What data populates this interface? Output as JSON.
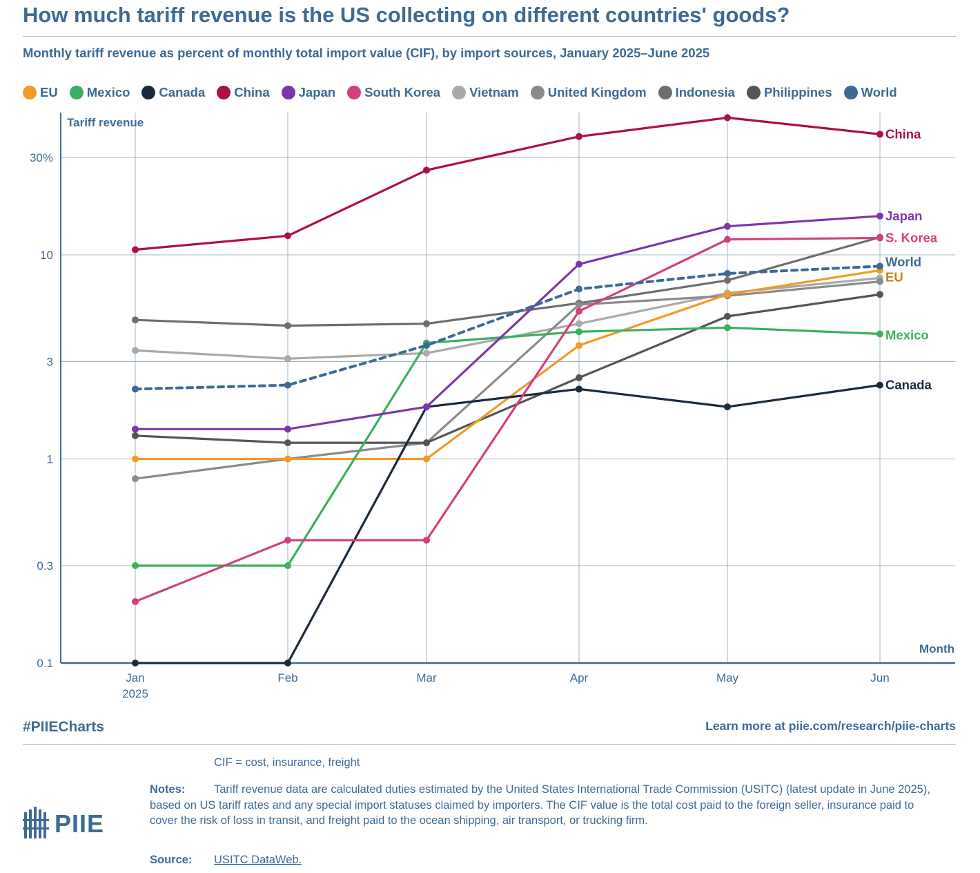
{
  "header": {
    "title": "How much tariff revenue is the US collecting on different countries' goods?",
    "subtitle": "Monthly tariff revenue as percent of monthly total import value (CIF), by import sources, January 2025–June 2025"
  },
  "legend": [
    {
      "label": "EU",
      "color": "#f39a27"
    },
    {
      "label": "Mexico",
      "color": "#3bb05e"
    },
    {
      "label": "Canada",
      "color": "#1a2a3d"
    },
    {
      "label": "China",
      "color": "#ac0f4b"
    },
    {
      "label": "Japan",
      "color": "#7b36ad"
    },
    {
      "label": "South Korea",
      "color": "#d1407e"
    },
    {
      "label": "Vietnam",
      "color": "#a9a9a9"
    },
    {
      "label": "United Kingdom",
      "color": "#8a8a8a"
    },
    {
      "label": "Indonesia",
      "color": "#6e6e6e"
    },
    {
      "label": "Philippines",
      "color": "#555555"
    },
    {
      "label": "World",
      "color": "#3d6a94"
    }
  ],
  "chart_data": {
    "type": "line",
    "title": "How much tariff revenue is the US collecting on different countries' goods?",
    "ylabel": "Tariff revenue",
    "xlabel": "Month",
    "y_scale": "log",
    "ylim": [
      0.1,
      45
    ],
    "y_ticks": [
      {
        "value": 0.1,
        "label": "0.1"
      },
      {
        "value": 0.3,
        "label": "0.3"
      },
      {
        "value": 1,
        "label": "1"
      },
      {
        "value": 3,
        "label": "3"
      },
      {
        "value": 10,
        "label": "10"
      },
      {
        "value": 30,
        "label": "30%"
      }
    ],
    "categories": [
      {
        "label": "Jan",
        "sub": "2025"
      },
      {
        "label": "Feb",
        "sub": ""
      },
      {
        "label": "Mar",
        "sub": ""
      },
      {
        "label": "Apr",
        "sub": ""
      },
      {
        "label": "May",
        "sub": ""
      },
      {
        "label": "Jun",
        "sub": ""
      }
    ],
    "series": [
      {
        "name": "Indonesia",
        "color": "#6e6e6e",
        "dashed": false,
        "label": "",
        "label_color": "",
        "values": [
          4.8,
          4.5,
          4.6,
          5.8,
          7.5,
          12.2
        ]
      },
      {
        "name": "Vietnam",
        "color": "#a9a9a9",
        "dashed": false,
        "label": "",
        "label_color": "",
        "values": [
          3.4,
          3.1,
          3.3,
          4.6,
          6.5,
          7.7
        ]
      },
      {
        "name": "United Kingdom",
        "color": "#8a8a8a",
        "dashed": false,
        "label": "",
        "label_color": "",
        "values": [
          0.8,
          1.0,
          1.2,
          5.7,
          6.3,
          7.4
        ]
      },
      {
        "name": "Philippines",
        "color": "#555555",
        "dashed": false,
        "label": "",
        "label_color": "",
        "values": [
          1.3,
          1.2,
          1.2,
          2.5,
          5.0,
          6.4
        ]
      },
      {
        "name": "EU",
        "color": "#f39a27",
        "dashed": false,
        "label": "EU",
        "label_color": "#c7811a",
        "values": [
          1.0,
          1.0,
          1.0,
          3.6,
          6.4,
          8.4
        ]
      },
      {
        "name": "Mexico",
        "color": "#3bb05e",
        "dashed": false,
        "label": "Mexico",
        "label_color": "#3bb05e",
        "values": [
          0.3,
          0.3,
          3.7,
          4.2,
          4.4,
          4.1
        ]
      },
      {
        "name": "Canada",
        "color": "#1a2a3d",
        "dashed": false,
        "label": "Canada",
        "label_color": "#1a2a3d",
        "values": [
          0.1,
          0.1,
          1.8,
          2.2,
          1.8,
          2.3
        ]
      },
      {
        "name": "South Korea",
        "color": "#d1407e",
        "dashed": false,
        "label": "S. Korea",
        "label_color": "#d1407e",
        "values": [
          0.2,
          0.4,
          0.4,
          5.3,
          11.9,
          12.1
        ]
      },
      {
        "name": "Japan",
        "color": "#7b36ad",
        "dashed": false,
        "label": "Japan",
        "label_color": "#7b36ad",
        "values": [
          1.4,
          1.4,
          1.8,
          9.0,
          13.8,
          15.5
        ]
      },
      {
        "name": "China",
        "color": "#ac0f4b",
        "dashed": false,
        "label": "China",
        "label_color": "#ac0f4b",
        "values": [
          10.6,
          12.4,
          26.0,
          38.0,
          47.0,
          39.0
        ]
      },
      {
        "name": "World",
        "color": "#3d6a94",
        "dashed": true,
        "label": "World",
        "label_color": "#3d6a94",
        "values": [
          2.2,
          2.3,
          3.6,
          6.8,
          8.1,
          8.8
        ]
      }
    ]
  },
  "footer": {
    "hashtag": "#PIIECharts",
    "learn_more": "Learn more at piie.com/research/piie-charts",
    "logo_text": "PIIE",
    "cif_note": "CIF = cost, insurance, freight",
    "notes_label": "Notes:",
    "notes_text": "Tariff revenue data are calculated duties estimated by the United States International Trade Commission (USITC) (latest update in June 2025), based on US tariff rates and any special import statuses claimed by importers. The CIF value is the total cost paid to the foreign seller, insurance paid to cover the risk of loss in transit, and freight paid to the ocean shipping, air transport, or trucking firm.",
    "source_label": "Source:",
    "source_text": "USITC DataWeb."
  }
}
